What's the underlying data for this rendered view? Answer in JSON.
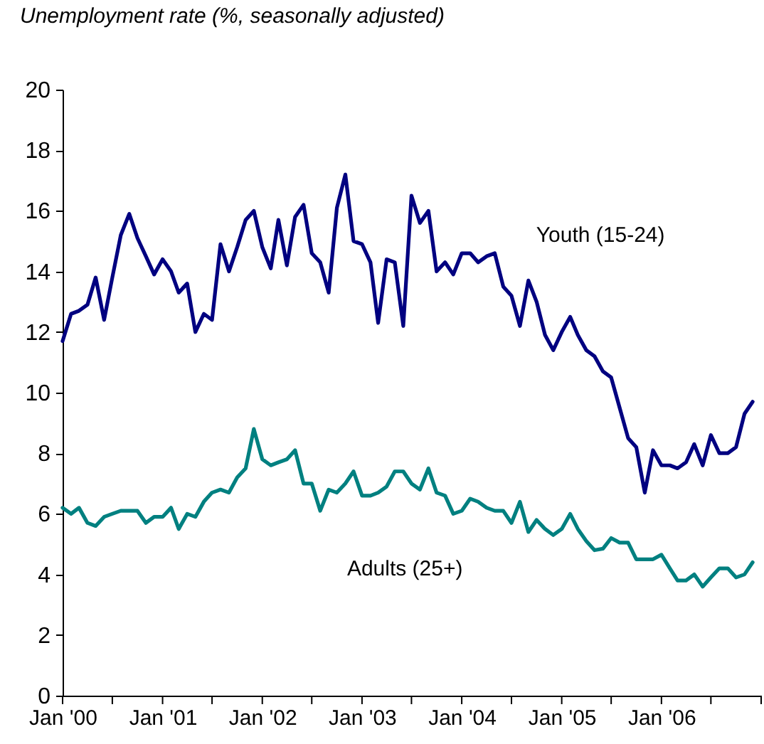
{
  "chart_data": {
    "type": "line",
    "title": "Unemployment rate (%, seasonally adjusted)",
    "x": [
      "2000-01",
      "2000-02",
      "2000-03",
      "2000-04",
      "2000-05",
      "2000-06",
      "2000-07",
      "2000-08",
      "2000-09",
      "2000-10",
      "2000-11",
      "2000-12",
      "2001-01",
      "2001-02",
      "2001-03",
      "2001-04",
      "2001-05",
      "2001-06",
      "2001-07",
      "2001-08",
      "2001-09",
      "2001-10",
      "2001-11",
      "2001-12",
      "2002-01",
      "2002-02",
      "2002-03",
      "2002-04",
      "2002-05",
      "2002-06",
      "2002-07",
      "2002-08",
      "2002-09",
      "2002-10",
      "2002-11",
      "2002-12",
      "2003-01",
      "2003-02",
      "2003-03",
      "2003-04",
      "2003-05",
      "2003-06",
      "2003-07",
      "2003-08",
      "2003-09",
      "2003-10",
      "2003-11",
      "2003-12",
      "2004-01",
      "2004-02",
      "2004-03",
      "2004-04",
      "2004-05",
      "2004-06",
      "2004-07",
      "2004-08",
      "2004-09",
      "2004-10",
      "2004-11",
      "2004-12",
      "2005-01",
      "2005-02",
      "2005-03",
      "2005-04",
      "2005-05",
      "2005-06",
      "2005-07",
      "2005-08",
      "2005-09",
      "2005-10",
      "2005-11",
      "2005-12",
      "2006-01",
      "2006-02",
      "2006-03",
      "2006-04",
      "2006-05",
      "2006-06",
      "2006-07",
      "2006-08",
      "2006-09",
      "2006-10",
      "2006-11",
      "2006-12"
    ],
    "series": [
      {
        "name": "Youth (15-24)",
        "color": "#000080",
        "values": [
          11.7,
          12.6,
          12.7,
          12.9,
          13.8,
          12.4,
          13.8,
          15.2,
          15.9,
          15.1,
          14.5,
          13.9,
          14.4,
          14.0,
          13.3,
          13.6,
          12.0,
          12.6,
          12.4,
          14.9,
          14.0,
          14.8,
          15.7,
          16.0,
          14.8,
          14.1,
          15.7,
          14.2,
          15.8,
          16.2,
          14.6,
          14.3,
          13.3,
          16.1,
          17.2,
          15.0,
          14.9,
          14.3,
          12.3,
          14.4,
          14.3,
          12.2,
          16.5,
          15.6,
          16.0,
          14.0,
          14.3,
          13.9,
          14.6,
          14.6,
          14.3,
          14.5,
          14.6,
          13.5,
          13.2,
          12.2,
          13.7,
          13.0,
          11.9,
          11.4,
          12.0,
          12.5,
          11.9,
          11.4,
          11.2,
          10.7,
          10.5,
          9.5,
          8.5,
          8.2,
          6.7,
          8.1,
          7.6,
          7.6,
          7.5,
          7.7,
          8.3,
          7.6,
          8.6,
          8.0,
          8.0,
          8.2,
          9.3,
          9.7
        ]
      },
      {
        "name": "Adults (25+)",
        "color": "#008080",
        "values": [
          6.2,
          6.0,
          6.2,
          5.7,
          5.6,
          5.9,
          6.0,
          6.1,
          6.1,
          6.1,
          5.7,
          5.9,
          5.9,
          6.2,
          5.5,
          6.0,
          5.9,
          6.4,
          6.7,
          6.8,
          6.7,
          7.2,
          7.5,
          8.8,
          7.8,
          7.6,
          7.7,
          7.8,
          8.1,
          7.0,
          7.0,
          6.1,
          6.8,
          6.7,
          7.0,
          7.4,
          6.6,
          6.6,
          6.7,
          6.9,
          7.4,
          7.4,
          7.0,
          6.8,
          7.5,
          6.7,
          6.6,
          6.0,
          6.1,
          6.5,
          6.4,
          6.2,
          6.1,
          6.1,
          5.7,
          6.4,
          5.4,
          5.8,
          5.5,
          5.3,
          5.5,
          6.0,
          5.5,
          5.1,
          4.8,
          4.85,
          5.2,
          5.05,
          5.05,
          4.5,
          4.5,
          4.5,
          4.65,
          4.2,
          3.8,
          3.8,
          4.0,
          3.6,
          3.9,
          4.2,
          4.2,
          3.9,
          4.0,
          4.4
        ]
      }
    ],
    "xlim": [
      "2000-01",
      "2007-01"
    ],
    "xticks": [
      {
        "value": "2000-01",
        "label": "Jan '00"
      },
      {
        "value": "2000-07",
        "label": null
      },
      {
        "value": "2001-01",
        "label": "Jan '01"
      },
      {
        "value": "2001-07",
        "label": null
      },
      {
        "value": "2002-01",
        "label": "Jan '02"
      },
      {
        "value": "2002-07",
        "label": null
      },
      {
        "value": "2003-01",
        "label": "Jan '03"
      },
      {
        "value": "2003-07",
        "label": null
      },
      {
        "value": "2004-01",
        "label": "Jan '04"
      },
      {
        "value": "2004-07",
        "label": null
      },
      {
        "value": "2005-01",
        "label": "Jan '05"
      },
      {
        "value": "2005-07",
        "label": null
      },
      {
        "value": "2006-01",
        "label": "Jan '06"
      },
      {
        "value": "2006-07",
        "label": null
      },
      {
        "value": "2007-01",
        "label": null
      }
    ],
    "ylim": [
      0,
      20
    ],
    "yticks": [
      0,
      2,
      4,
      6,
      8,
      10,
      12,
      14,
      16,
      18,
      20
    ],
    "grid": false,
    "legend": false,
    "marker": "none",
    "line_style": "solid"
  }
}
